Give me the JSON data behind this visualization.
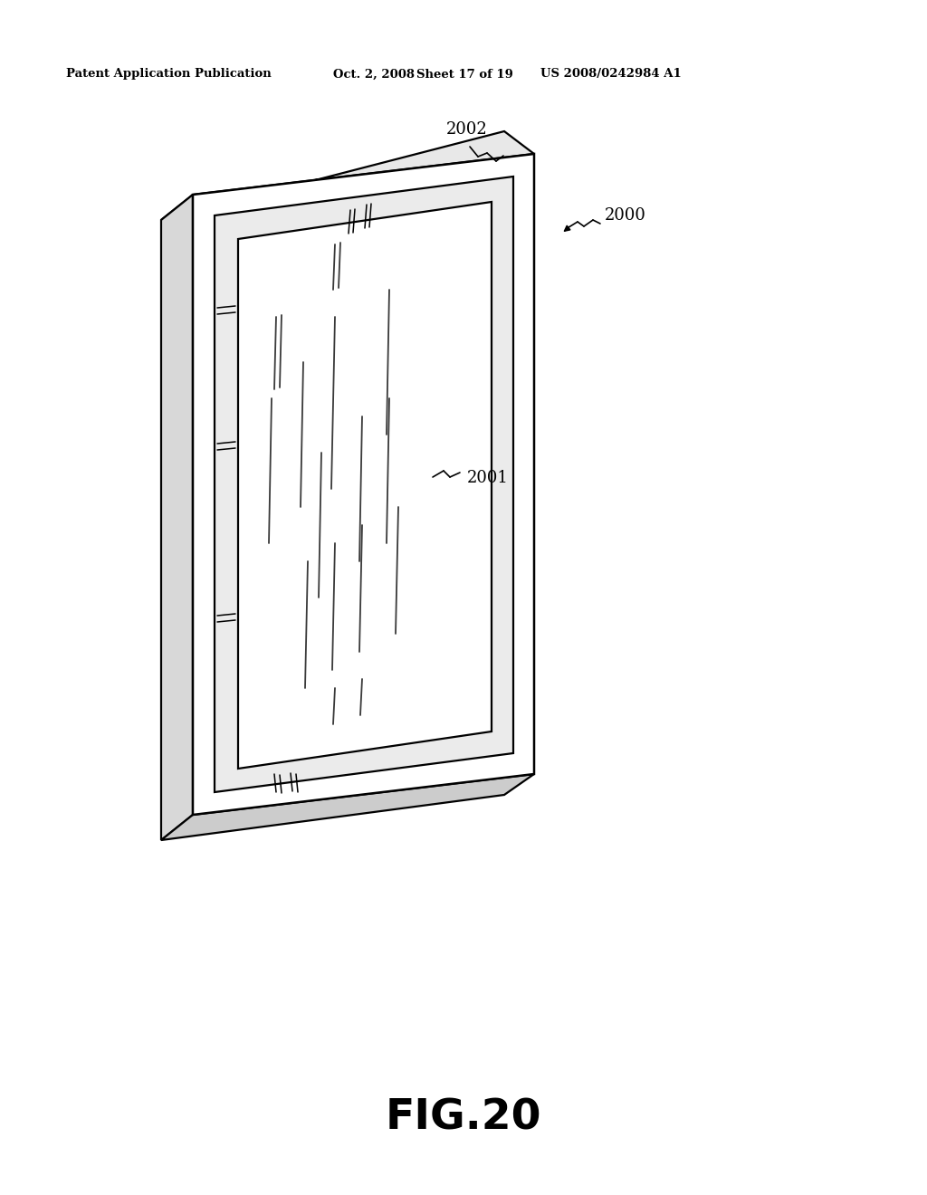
{
  "background_color": "#ffffff",
  "header_text": "Patent Application Publication",
  "header_date": "Oct. 2, 2008",
  "header_sheet": "Sheet 17 of 19",
  "header_patent": "US 2008/0242984 A1",
  "figure_label": "FIG.20",
  "label_2000": "2000",
  "label_2001": "2001",
  "label_2002": "2002",
  "line_color": "#000000"
}
